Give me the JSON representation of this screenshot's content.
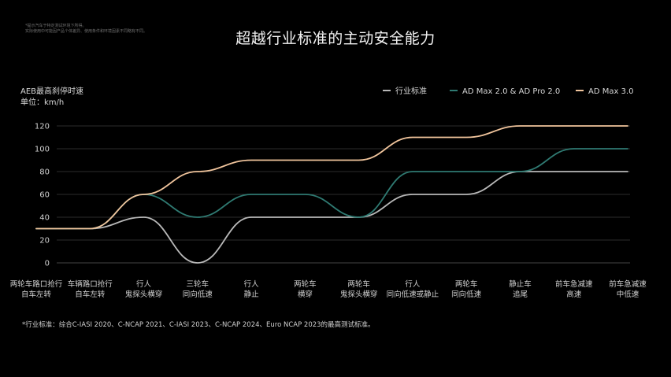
{
  "disclaimer": {
    "line1": "*提示汽车于特定测试环境下所得。",
    "line2": "实际使用中可能因产品个体差异、使用条件和环境因素不同略有不同。"
  },
  "chart_data": {
    "type": "line",
    "title": "超越行业标准的主动安全能力",
    "ylabel": "AEB最高刹停时速",
    "yunit": "单位：km/h",
    "ylim": [
      0,
      120
    ],
    "yticks": [
      0,
      20,
      40,
      60,
      80,
      100,
      120
    ],
    "grid": true,
    "legend_position": "top-right",
    "categories": [
      [
        "两轮车路口抢行",
        "自车左转"
      ],
      [
        "车辆路口抢行",
        "自车左转"
      ],
      [
        "行人",
        "鬼探头横穿"
      ],
      [
        "三轮车",
        "同向低速"
      ],
      [
        "行人",
        "静止"
      ],
      [
        "两轮车",
        "横穿"
      ],
      [
        "两轮车",
        "鬼探头横穿"
      ],
      [
        "行人",
        "同向低速或静止"
      ],
      [
        "两轮车",
        "同向低速"
      ],
      [
        "静止车",
        "追尾"
      ],
      [
        "前车急减速",
        "高速"
      ],
      [
        "前车急减速",
        "中低速"
      ]
    ],
    "series": [
      {
        "name": "行业标准",
        "color": "#b8b8b8",
        "values": [
          30,
          30,
          40,
          0,
          40,
          40,
          40,
          60,
          60,
          80,
          80,
          80
        ]
      },
      {
        "name": "AD Max 2.0 & AD Pro 2.0",
        "color": "#2f7a72",
        "values": [
          30,
          30,
          60,
          40,
          60,
          60,
          40,
          80,
          80,
          80,
          100,
          100
        ]
      },
      {
        "name": "AD Max 3.0",
        "color": "#f0c49c",
        "values": [
          30,
          30,
          60,
          80,
          90,
          90,
          90,
          110,
          110,
          120,
          120,
          120
        ]
      }
    ]
  },
  "footnote": "*行业标准：综合C-IASI 2020、C-NCAP 2021、C-IASI 2023、C-NCAP 2024、Euro NCAP 2023的最高测试标准。"
}
